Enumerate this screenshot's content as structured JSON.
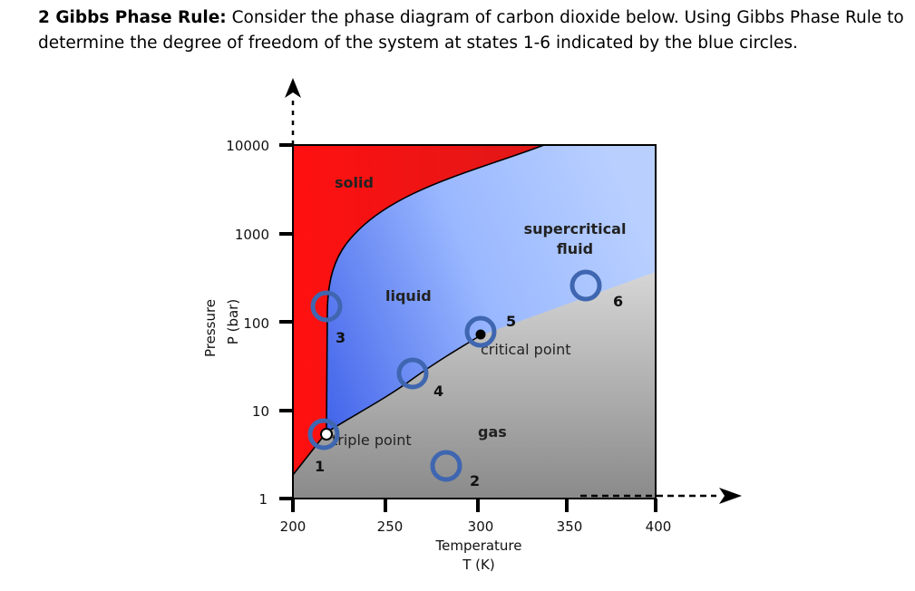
{
  "question": {
    "heading": "2 Gibbs Phase Rule:",
    "body": " Consider the phase diagram of carbon dioxide below. Using Gibbs Phase Rule to determine the degree of freedom of the system at states 1-6 indicated by the blue circles."
  },
  "diagram": {
    "y_axis": {
      "title": "Pressure",
      "subtitle": "P (bar)",
      "ticks": [
        "10000",
        "1000",
        "100",
        "10",
        "1"
      ]
    },
    "x_axis": {
      "title": "Temperature",
      "subtitle": "T (K)",
      "ticks": [
        "200",
        "250",
        "300",
        "350",
        "400"
      ]
    },
    "regions": {
      "solid": "solid",
      "liquid": "liquid",
      "supercritical": "supercritical",
      "fluid": "fluid",
      "gas": "gas"
    },
    "points": {
      "critical": "critical point",
      "triple": "triple point"
    },
    "states": [
      "1",
      "2",
      "3",
      "4",
      "5",
      "6"
    ],
    "colors": {
      "solid": "#ff1a1a",
      "liquid": "#6a8cf0",
      "supercritical": "#a9c4ff",
      "gas": "#c8c8c8",
      "circle": "#3f66b0"
    }
  }
}
